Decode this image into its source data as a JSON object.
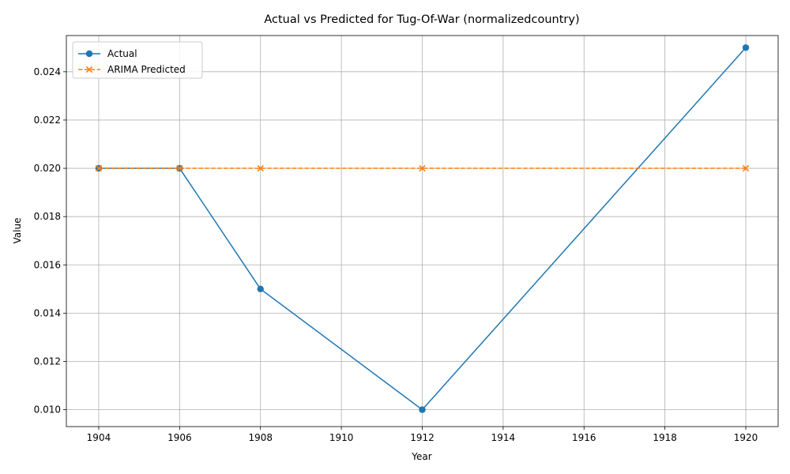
{
  "chart_data": {
    "type": "line",
    "title": "Actual vs Predicted for Tug-Of-War (normalizedcountry)",
    "xlabel": "Year",
    "ylabel": "Value",
    "xlim": [
      1903.2,
      1920.8
    ],
    "ylim": [
      0.0093,
      0.0255
    ],
    "xticks": [
      1904,
      1906,
      1908,
      1910,
      1912,
      1914,
      1916,
      1918,
      1920
    ],
    "yticks": [
      0.01,
      0.012,
      0.014,
      0.016,
      0.018,
      0.02,
      0.022,
      0.024
    ],
    "ytick_labels": [
      "0.010",
      "0.012",
      "0.014",
      "0.016",
      "0.018",
      "0.020",
      "0.022",
      "0.024"
    ],
    "grid": true,
    "legend_position": "upper-left",
    "series": [
      {
        "name": "Actual",
        "color": "#1f77b4",
        "marker": "circle",
        "line_style": "solid",
        "x": [
          1904,
          1906,
          1908,
          1912,
          1920
        ],
        "y": [
          0.02,
          0.02,
          0.015,
          0.01,
          0.025
        ]
      },
      {
        "name": "ARIMA Predicted",
        "color": "#ff7f0e",
        "marker": "x",
        "line_style": "dashed",
        "x": [
          1904,
          1906,
          1908,
          1912,
          1920
        ],
        "y": [
          0.02,
          0.02,
          0.02,
          0.02,
          0.02
        ]
      }
    ]
  }
}
